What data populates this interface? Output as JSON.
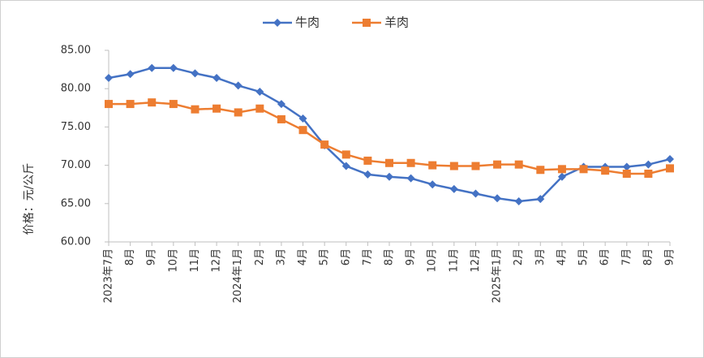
{
  "chart_data": {
    "type": "line",
    "y_label": "价格：元/公斤",
    "categories": [
      "2023年7月",
      "8月",
      "9月",
      "10月",
      "11月",
      "12月",
      "2024年1月",
      "2月",
      "3月",
      "4月",
      "5月",
      "6月",
      "7月",
      "8月",
      "9月",
      "10月",
      "11月",
      "12月",
      "2025年1月",
      "2月",
      "3月",
      "4月",
      "5月",
      "6月",
      "7月",
      "8月",
      "9月"
    ],
    "series": [
      {
        "name": "牛肉",
        "color": "#4472c4",
        "marker": "diamond",
        "values": [
          81.4,
          81.9,
          82.7,
          82.7,
          82.0,
          81.4,
          80.4,
          79.6,
          78.0,
          76.1,
          72.6,
          69.9,
          68.8,
          68.5,
          68.3,
          67.5,
          66.9,
          66.3,
          65.7,
          65.3,
          65.6,
          68.5,
          69.8,
          69.8,
          69.8,
          70.1,
          70.8
        ]
      },
      {
        "name": "羊肉",
        "color": "#ed7d31",
        "marker": "square",
        "values": [
          78.0,
          78.0,
          78.2,
          78.0,
          77.3,
          77.4,
          76.9,
          77.4,
          76.0,
          74.6,
          72.7,
          71.4,
          70.6,
          70.3,
          70.3,
          70.0,
          69.9,
          69.9,
          70.1,
          70.1,
          69.4,
          69.5,
          69.5,
          69.3,
          68.9,
          68.9,
          69.6
        ]
      }
    ],
    "ylim": [
      60,
      85
    ],
    "yticks": [
      {
        "value": 60,
        "label": "60.00"
      },
      {
        "value": 65,
        "label": "65.00"
      },
      {
        "value": 70,
        "label": "70.00"
      },
      {
        "value": 75,
        "label": "75.00"
      },
      {
        "value": 80,
        "label": "80.00"
      },
      {
        "value": 85,
        "label": "85.00"
      }
    ],
    "grid": false,
    "legend": "top"
  }
}
